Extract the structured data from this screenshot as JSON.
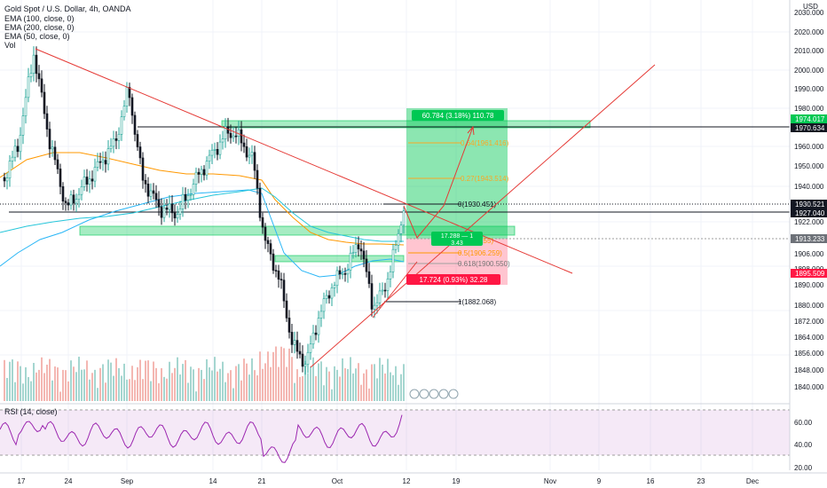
{
  "header": {
    "symbol_title": "Gold Spot / U.S. Dollar, 4h, OANDA",
    "indicators": [
      "EMA (100, close, 0)",
      "EMA (200, close, 0)",
      "EMA (50, close, 0)",
      "Vol"
    ],
    "currency": "USD"
  },
  "rsi_panel": {
    "title": "RSI (14, close)",
    "ticks": [
      "60.00",
      "40.00",
      "20.00"
    ]
  },
  "price_axis": {
    "ticks": [
      "2030.000",
      "2020.000",
      "2010.000",
      "2000.000",
      "1990.000",
      "1980.000",
      "1960.000",
      "1950.000",
      "1940.000",
      "1922.000",
      "1906.000",
      "1898.000",
      "1890.000",
      "1880.000",
      "1872.000",
      "1864.000",
      "1856.000",
      "1848.000",
      "1840.000"
    ],
    "markers": [
      {
        "label": "1974.017",
        "color": "#00c853"
      },
      {
        "label": "1970.634",
        "color": "#131722"
      },
      {
        "label": "1930.521",
        "color": "#131722"
      },
      {
        "label": "1927.040",
        "color": "#131722"
      },
      {
        "label": "1913.233",
        "color": "#6d7178"
      },
      {
        "label": "1895.509",
        "color": "#ff1744"
      }
    ]
  },
  "time_axis": {
    "labels": [
      "17",
      "24",
      "Sep",
      "14",
      "21",
      "Oct",
      "12",
      "19",
      "Nov",
      "9",
      "16",
      "23",
      "Dec"
    ]
  },
  "fib_levels": [
    "0(1930.451)",
    "0.27(1943.514)",
    "0.64(1961.416)",
    "0.5(1906.259)",
    "0.618(1900.550)",
    "(1911.155)",
    "1(1882.068)"
  ],
  "long_position": {
    "target_label": "60.784 (3.18%) 110.78",
    "stop_label": "17.724 (0.93%) 32.28",
    "ratio_label": "17.288 — 1",
    "ratio_value": "3.43"
  },
  "colors": {
    "up": "#26a69a",
    "down": "#131722",
    "target_zone": "#00c853",
    "stop_zone": "#ff1744",
    "trendline": "#e53935",
    "rsi": "#9c27b0"
  }
}
